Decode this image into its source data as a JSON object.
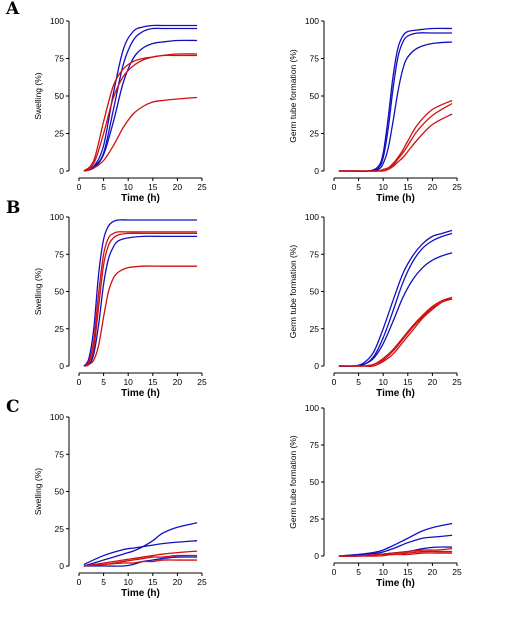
{
  "figure": {
    "panel_labels": [
      "A",
      "B",
      "C"
    ],
    "colors": {
      "blue": "#1010c0",
      "red": "#d01010"
    }
  },
  "chart_data": [
    {
      "id": "A-swelling",
      "type": "line",
      "panel": "A",
      "xlabel": "Time (h)",
      "ylabel": "Swelling (%)",
      "xlim": [
        0,
        25
      ],
      "ylim": [
        0,
        100
      ],
      "xticks": [
        0,
        5,
        10,
        15,
        20,
        25
      ],
      "yticks": [
        0,
        25,
        50,
        75,
        100
      ],
      "x": [
        1,
        3,
        5,
        7,
        9,
        11,
        13,
        15,
        17,
        20,
        24
      ],
      "series": [
        {
          "color": "blue",
          "values": [
            0,
            3,
            17,
            52,
            81,
            93,
            96,
            97,
            97,
            97,
            97
          ]
        },
        {
          "color": "blue",
          "values": [
            0,
            3,
            12,
            41,
            71,
            87,
            93,
            95,
            95,
            95,
            95
          ]
        },
        {
          "color": "blue",
          "values": [
            0,
            2,
            11,
            33,
            59,
            75,
            82,
            85,
            86,
            87,
            87
          ]
        },
        {
          "color": "red",
          "values": [
            0,
            7,
            33,
            57,
            68,
            73,
            75,
            76,
            77,
            77,
            77
          ]
        },
        {
          "color": "red",
          "values": [
            0,
            5,
            25,
            49,
            63,
            70,
            74,
            76,
            77,
            78,
            78
          ]
        },
        {
          "color": "red",
          "values": [
            0,
            2,
            7,
            17,
            29,
            38,
            43,
            46,
            47,
            48,
            49
          ]
        }
      ]
    },
    {
      "id": "A-germ",
      "type": "line",
      "panel": "A",
      "xlabel": "Time (h)",
      "ylabel": "Germ tube formation (%)",
      "xlim": [
        0,
        25
      ],
      "ylim": [
        0,
        100
      ],
      "xticks": [
        0,
        5,
        10,
        15,
        20,
        25
      ],
      "yticks": [
        0,
        25,
        50,
        75,
        100
      ],
      "x": [
        1,
        4,
        7,
        9,
        10,
        11,
        12,
        13,
        14,
        15,
        17,
        20,
        24
      ],
      "series": [
        {
          "color": "blue",
          "values": [
            0,
            0,
            0,
            3,
            12,
            35,
            63,
            82,
            90,
            93,
            94,
            95,
            95
          ]
        },
        {
          "color": "blue",
          "values": [
            0,
            0,
            0,
            2,
            9,
            28,
            55,
            76,
            86,
            90,
            92,
            92,
            92
          ]
        },
        {
          "color": "blue",
          "values": [
            0,
            0,
            0,
            1,
            5,
            15,
            33,
            53,
            68,
            76,
            82,
            85,
            86
          ]
        },
        {
          "color": "red",
          "values": [
            0,
            0,
            0,
            0,
            1,
            2,
            5,
            9,
            14,
            20,
            31,
            41,
            47
          ]
        },
        {
          "color": "red",
          "values": [
            0,
            0,
            0,
            0,
            1,
            2,
            4,
            8,
            12,
            17,
            27,
            37,
            45
          ]
        },
        {
          "color": "red",
          "values": [
            0,
            0,
            0,
            0,
            0,
            1,
            3,
            6,
            9,
            13,
            21,
            31,
            38
          ]
        }
      ]
    },
    {
      "id": "B-swelling",
      "type": "line",
      "panel": "B",
      "xlabel": "Time (h)",
      "ylabel": "Swelling (%)",
      "xlim": [
        0,
        25
      ],
      "ylim": [
        0,
        100
      ],
      "xticks": [
        0,
        5,
        10,
        15,
        20,
        25
      ],
      "yticks": [
        0,
        25,
        50,
        75,
        100
      ],
      "x": [
        1,
        2,
        3,
        4,
        5,
        6,
        7,
        8,
        10,
        13,
        17,
        24
      ],
      "series": [
        {
          "color": "blue",
          "values": [
            0,
            5,
            25,
            62,
            85,
            94,
            97,
            98,
            98,
            98,
            98,
            98
          ]
        },
        {
          "color": "red",
          "values": [
            0,
            3,
            17,
            49,
            75,
            86,
            89,
            90,
            90,
            90,
            90,
            90
          ]
        },
        {
          "color": "red",
          "values": [
            0,
            2,
            12,
            40,
            68,
            81,
            86,
            88,
            89,
            89,
            89,
            89
          ]
        },
        {
          "color": "blue",
          "values": [
            0,
            1,
            8,
            28,
            55,
            72,
            80,
            84,
            86,
            87,
            87,
            87
          ]
        },
        {
          "color": "red",
          "values": [
            0,
            1,
            4,
            14,
            33,
            50,
            59,
            63,
            66,
            67,
            67,
            67
          ]
        }
      ]
    },
    {
      "id": "B-germ",
      "type": "line",
      "panel": "B",
      "xlabel": "Time (h)",
      "ylabel": "Germ tube formation (%)",
      "xlim": [
        0,
        25
      ],
      "ylim": [
        0,
        100
      ],
      "xticks": [
        0,
        5,
        10,
        15,
        20,
        25
      ],
      "yticks": [
        0,
        25,
        50,
        75,
        100
      ],
      "x": [
        1,
        4,
        6,
        8,
        10,
        12,
        14,
        16,
        18,
        20,
        22,
        24
      ],
      "series": [
        {
          "color": "blue",
          "values": [
            0,
            0,
            2,
            9,
            25,
            44,
            62,
            74,
            82,
            87,
            89,
            91
          ]
        },
        {
          "color": "blue",
          "values": [
            0,
            0,
            1,
            6,
            19,
            37,
            56,
            70,
            79,
            84,
            87,
            89
          ]
        },
        {
          "color": "blue",
          "values": [
            0,
            0,
            1,
            5,
            15,
            30,
            46,
            58,
            66,
            71,
            74,
            76
          ]
        },
        {
          "color": "red",
          "values": [
            0,
            0,
            0,
            1,
            5,
            11,
            19,
            27,
            34,
            40,
            44,
            46
          ]
        },
        {
          "color": "red",
          "values": [
            0,
            0,
            0,
            1,
            4,
            10,
            18,
            26,
            33,
            39,
            43,
            45
          ]
        },
        {
          "color": "red",
          "values": [
            0,
            0,
            0,
            0,
            3,
            8,
            16,
            24,
            32,
            38,
            43,
            46
          ]
        }
      ]
    },
    {
      "id": "C-swelling",
      "type": "line",
      "panel": "C",
      "xlabel": "Time (h)",
      "ylabel": "Swelling (%)",
      "xlim": [
        0,
        25
      ],
      "ylim": [
        0,
        100
      ],
      "xticks": [
        0,
        5,
        10,
        15,
        20,
        25
      ],
      "yticks": [
        0,
        25,
        50,
        75,
        100
      ],
      "x": [
        1,
        5,
        9,
        11,
        13,
        15,
        17,
        20,
        24
      ],
      "series": [
        {
          "color": "blue",
          "values": [
            0,
            4,
            8,
            10,
            13,
            17,
            22,
            26,
            29
          ]
        },
        {
          "color": "blue",
          "values": [
            1,
            7,
            11,
            12,
            13,
            14,
            15,
            16,
            17
          ]
        },
        {
          "color": "red",
          "values": [
            0,
            2,
            4,
            5,
            6,
            7,
            8,
            9,
            10
          ]
        },
        {
          "color": "red",
          "values": [
            0,
            1,
            3,
            4,
            5,
            6,
            6,
            7,
            7
          ]
        },
        {
          "color": "blue",
          "values": [
            0,
            0,
            0,
            1,
            3,
            4,
            5,
            6,
            6
          ]
        },
        {
          "color": "red",
          "values": [
            0,
            1,
            2,
            2,
            3,
            3,
            4,
            4,
            4
          ]
        }
      ]
    },
    {
      "id": "C-germ",
      "type": "line",
      "panel": "C",
      "xlabel": "Time (h)",
      "ylabel": "Germ tube formation (%)",
      "xlim": [
        0,
        25
      ],
      "ylim": [
        0,
        100
      ],
      "xticks": [
        0,
        5,
        10,
        15,
        20,
        25
      ],
      "yticks": [
        0,
        25,
        50,
        75,
        100
      ],
      "x": [
        1,
        5,
        9,
        12,
        15,
        18,
        21,
        24
      ],
      "series": [
        {
          "color": "blue",
          "values": [
            0,
            1,
            3,
            7,
            12,
            17,
            20,
            22
          ]
        },
        {
          "color": "blue",
          "values": [
            0,
            1,
            2,
            5,
            9,
            12,
            13,
            14
          ]
        },
        {
          "color": "blue",
          "values": [
            0,
            0,
            1,
            2,
            3,
            5,
            6,
            6
          ]
        },
        {
          "color": "red",
          "values": [
            0,
            0,
            1,
            2,
            3,
            4,
            4,
            5
          ]
        },
        {
          "color": "red",
          "values": [
            0,
            0,
            1,
            1,
            2,
            3,
            3,
            3
          ]
        },
        {
          "color": "red",
          "values": [
            0,
            0,
            0,
            1,
            1,
            2,
            2,
            2
          ]
        }
      ]
    }
  ]
}
